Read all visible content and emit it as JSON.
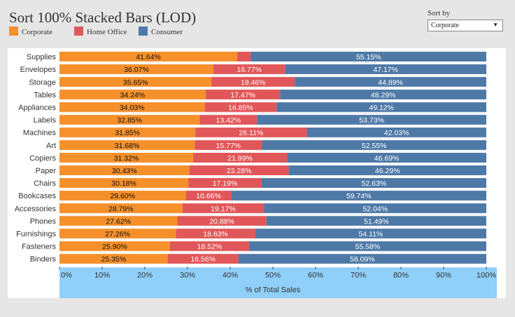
{
  "title": "Sort 100% Stacked Bars (LOD)",
  "sort_control": {
    "label": "Sort by",
    "selected": "Corporate"
  },
  "colors": {
    "Corporate": "#f5902b",
    "Home Office": "#e15759",
    "Consumer": "#4e79a7"
  },
  "chart_data": {
    "type": "bar",
    "orientation": "horizontal",
    "stacked": "100%",
    "title": "Sort 100% Stacked Bars (LOD)",
    "xlabel": "% of Total Sales",
    "ylabel": "",
    "xlim": [
      0,
      100
    ],
    "xticks": [
      "0%",
      "10%",
      "20%",
      "30%",
      "40%",
      "50%",
      "60%",
      "70%",
      "80%",
      "90%",
      "100%"
    ],
    "legend": [
      "Corporate",
      "Home Office",
      "Consumer"
    ],
    "categories": [
      "Supplies",
      "Envelopes",
      "Storage",
      "Tables",
      "Appliances",
      "Labels",
      "Machines",
      "Art",
      "Copiers",
      "Paper",
      "Chairs",
      "Bookcases",
      "Accessories",
      "Phones",
      "Furnishings",
      "Fasteners",
      "Binders"
    ],
    "series": [
      {
        "name": "Corporate",
        "values": [
          41.64,
          36.07,
          35.65,
          34.24,
          34.03,
          32.85,
          31.85,
          31.68,
          31.32,
          30.43,
          30.18,
          29.6,
          28.79,
          27.62,
          27.26,
          25.9,
          25.35
        ],
        "labels": [
          "41.64%",
          "36.07%",
          "35.65%",
          "34.24%",
          "34.03%",
          "32.85%",
          "31.85%",
          "31.68%",
          "31.32%",
          "30.43%",
          "30.18%",
          "29.60%",
          "28.79%",
          "27.62%",
          "27.26%",
          "25.90%",
          "25.35%"
        ]
      },
      {
        "name": "Home Office",
        "values": [
          3.21,
          16.77,
          19.46,
          17.47,
          16.85,
          13.42,
          26.11,
          15.77,
          21.99,
          23.28,
          17.19,
          10.66,
          19.17,
          20.88,
          18.63,
          18.52,
          16.56
        ],
        "labels": [
          "",
          "16.77%",
          "19.46%",
          "17.47%",
          "16.85%",
          "13.42%",
          "26.11%",
          "15.77%",
          "21.99%",
          "23.28%",
          "17.19%",
          "10.66%",
          "19.17%",
          "20.88%",
          "18.63%",
          "18.52%",
          "16.56%"
        ]
      },
      {
        "name": "Consumer",
        "values": [
          55.15,
          47.17,
          44.89,
          48.29,
          49.12,
          53.73,
          42.03,
          52.55,
          46.69,
          46.29,
          52.63,
          59.74,
          52.04,
          51.49,
          54.11,
          55.58,
          58.09
        ],
        "labels": [
          "55.15%",
          "47.17%",
          "44.89%",
          "48.29%",
          "49.12%",
          "53.73%",
          "42.03%",
          "52.55%",
          "46.69%",
          "46.29%",
          "52.63%",
          "59.74%",
          "52.04%",
          "51.49%",
          "54.11%",
          "55.58%",
          "58.09%"
        ]
      }
    ]
  }
}
